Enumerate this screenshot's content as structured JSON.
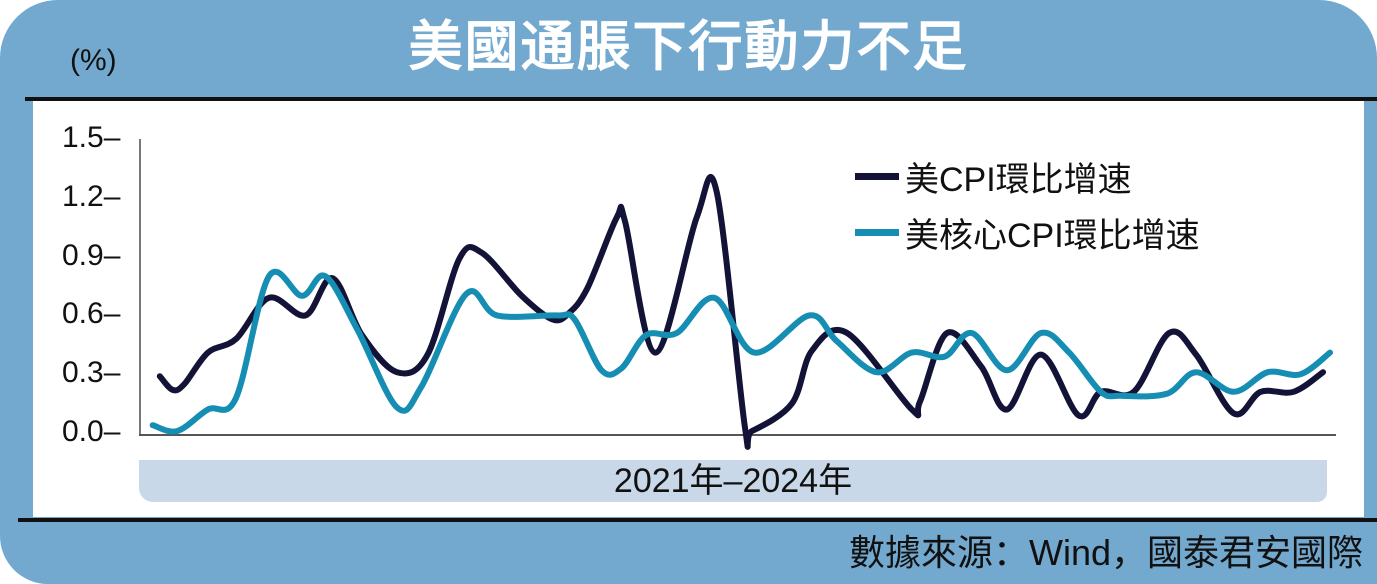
{
  "header": {
    "title": "美國通脹下行動力不足",
    "unit": "(%)"
  },
  "footer": {
    "source": "數據來源：Wind，國泰君安國際"
  },
  "colors": {
    "frame": "#74a9cf",
    "band": "#c9d8e8",
    "cpi": "#121336",
    "core_cpi": "#168db3"
  },
  "chart_data": {
    "type": "line",
    "title": "美國通脹下行動力不足",
    "xlabel": "2021年–2024年",
    "ylabel": "(%)",
    "ylim": [
      0.0,
      1.5
    ],
    "yticks": [
      "1.5",
      "1.2",
      "0.9",
      "0.6",
      "0.3",
      "0.0"
    ],
    "grid": false,
    "legend_position": "upper right",
    "x_note": "x given as fraction of the time axis (0 = start of 2021, 1 = end of 2024)",
    "series": [
      {
        "name": "美CPI環比增速",
        "color": "#121336",
        "points": [
          [
            0.01,
            0.29
          ],
          [
            0.021,
            0.22
          ],
          [
            0.031,
            0.25
          ],
          [
            0.051,
            0.41
          ],
          [
            0.075,
            0.48
          ],
          [
            0.103,
            0.69
          ],
          [
            0.134,
            0.6
          ],
          [
            0.157,
            0.79
          ],
          [
            0.182,
            0.5
          ],
          [
            0.212,
            0.31
          ],
          [
            0.238,
            0.4
          ],
          [
            0.265,
            0.89
          ],
          [
            0.284,
            0.92
          ],
          [
            0.318,
            0.7
          ],
          [
            0.344,
            0.58
          ],
          [
            0.358,
            0.61
          ],
          [
            0.374,
            0.74
          ],
          [
            0.399,
            1.1
          ],
          [
            0.406,
            1.08
          ],
          [
            0.432,
            0.41
          ],
          [
            0.467,
            1.1
          ],
          [
            0.484,
            1.23
          ],
          [
            0.508,
            0.03
          ],
          [
            0.514,
            0.01
          ],
          [
            0.548,
            0.15
          ],
          [
            0.565,
            0.42
          ],
          [
            0.595,
            0.51
          ],
          [
            0.65,
            0.12
          ],
          [
            0.657,
            0.16
          ],
          [
            0.68,
            0.51
          ],
          [
            0.709,
            0.34
          ],
          [
            0.731,
            0.12
          ],
          [
            0.76,
            0.4
          ],
          [
            0.792,
            0.09
          ],
          [
            0.811,
            0.21
          ],
          [
            0.839,
            0.21
          ],
          [
            0.869,
            0.51
          ],
          [
            0.892,
            0.4
          ],
          [
            0.924,
            0.1
          ],
          [
            0.947,
            0.21
          ],
          [
            0.975,
            0.21
          ],
          [
            1.0,
            0.31
          ]
        ]
      },
      {
        "name": "美核心CPI環比增速",
        "color": "#168db3",
        "points": [
          [
            0.004,
            0.04
          ],
          [
            0.025,
            0.01
          ],
          [
            0.051,
            0.12
          ],
          [
            0.075,
            0.18
          ],
          [
            0.103,
            0.8
          ],
          [
            0.131,
            0.7
          ],
          [
            0.151,
            0.8
          ],
          [
            0.178,
            0.53
          ],
          [
            0.212,
            0.13
          ],
          [
            0.233,
            0.24
          ],
          [
            0.271,
            0.71
          ],
          [
            0.297,
            0.6
          ],
          [
            0.348,
            0.6
          ],
          [
            0.363,
            0.58
          ],
          [
            0.386,
            0.32
          ],
          [
            0.403,
            0.33
          ],
          [
            0.424,
            0.5
          ],
          [
            0.45,
            0.51
          ],
          [
            0.482,
            0.69
          ],
          [
            0.516,
            0.41
          ],
          [
            0.563,
            0.6
          ],
          [
            0.586,
            0.47
          ],
          [
            0.62,
            0.31
          ],
          [
            0.65,
            0.41
          ],
          [
            0.678,
            0.39
          ],
          [
            0.701,
            0.51
          ],
          [
            0.731,
            0.32
          ],
          [
            0.76,
            0.51
          ],
          [
            0.784,
            0.41
          ],
          [
            0.811,
            0.21
          ],
          [
            0.828,
            0.19
          ],
          [
            0.867,
            0.2
          ],
          [
            0.892,
            0.31
          ],
          [
            0.924,
            0.21
          ],
          [
            0.953,
            0.31
          ],
          [
            0.981,
            0.3
          ],
          [
            1.006,
            0.41
          ]
        ]
      }
    ]
  }
}
